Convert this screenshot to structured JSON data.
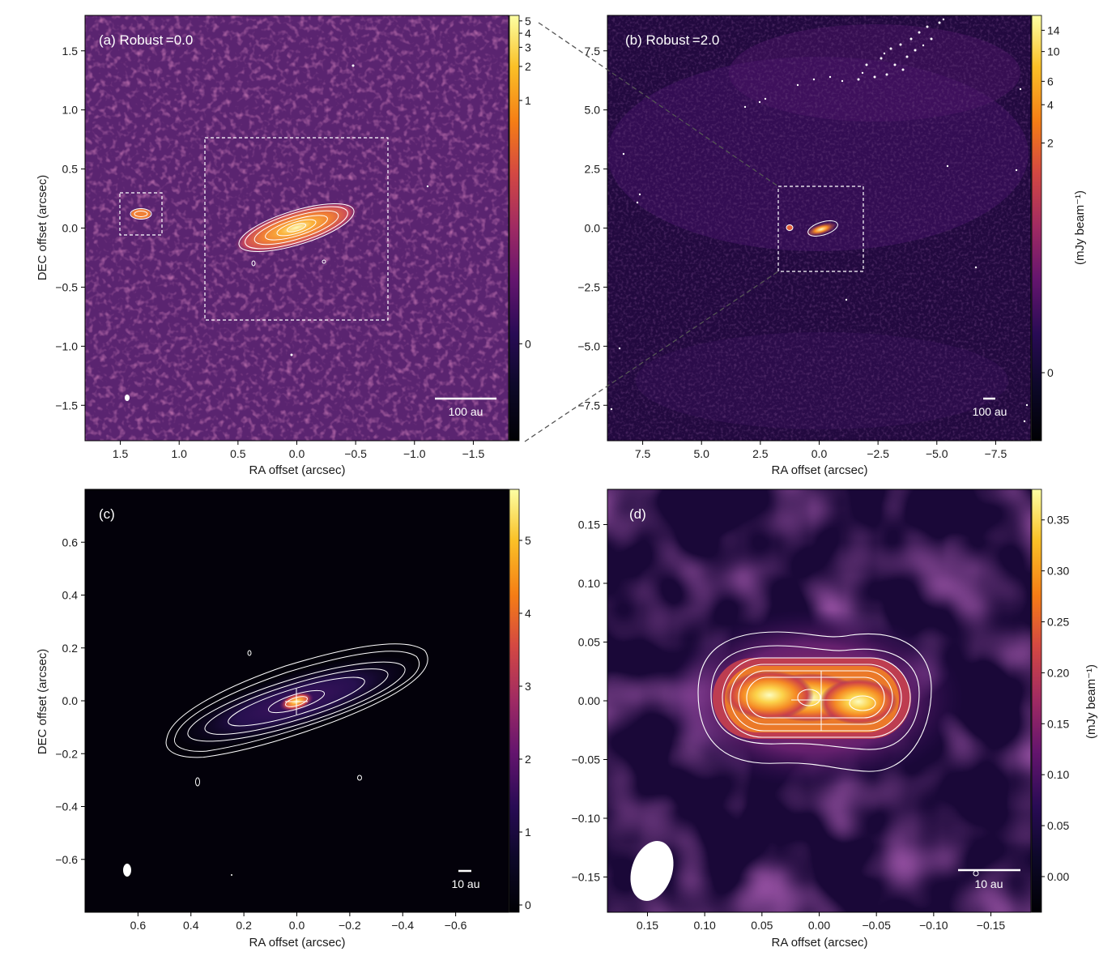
{
  "chart_data": [
    {
      "type": "heatmap",
      "panel_label": "(a) Robust =0.0",
      "xlabel": "RA offset (arcsec)",
      "ylabel": "DEC offset (arcsec)",
      "xlim": [
        1.8,
        -1.8
      ],
      "ylim": [
        -1.8,
        1.8
      ],
      "xticks": [
        {
          "v": 1.5,
          "t": "1.5"
        },
        {
          "v": 1.0,
          "t": "1.0"
        },
        {
          "v": 0.5,
          "t": "0.5"
        },
        {
          "v": 0.0,
          "t": "0.0"
        },
        {
          "v": -0.5,
          "t": "−0.5"
        },
        {
          "v": -1.0,
          "t": "−1.0"
        },
        {
          "v": -1.5,
          "t": "−1.5"
        }
      ],
      "yticks": [
        {
          "v": 1.5,
          "t": "1.5"
        },
        {
          "v": 1.0,
          "t": "1.0"
        },
        {
          "v": 0.5,
          "t": "0.5"
        },
        {
          "v": 0.0,
          "t": "0.0"
        },
        {
          "v": -0.5,
          "t": "−0.5"
        },
        {
          "v": -1.0,
          "t": "−1.0"
        },
        {
          "v": -1.5,
          "t": "−1.5"
        }
      ],
      "colorbar": {
        "scale": "asinh",
        "label": "",
        "ticks": [
          {
            "f": 0.987,
            "t": "5"
          },
          {
            "f": 0.958,
            "t": "4"
          },
          {
            "f": 0.925,
            "t": "3"
          },
          {
            "f": 0.88,
            "t": "2"
          },
          {
            "f": 0.8,
            "t": "1"
          },
          {
            "f": 0.228,
            "t": "0"
          }
        ]
      },
      "scalebar": "100 au",
      "insets": [
        {
          "x0": 0.78,
          "x1": -0.78,
          "y0": -0.78,
          "y1": 0.78
        },
        {
          "x0": 1.5,
          "x1": 1.14,
          "y0": -0.06,
          "y1": 0.3
        }
      ],
      "sources": [
        {
          "name": "primary disk",
          "x": 0.0,
          "y": 0.0,
          "major_arcsec": 1.0,
          "minor_arcsec": 0.24,
          "pa_deg": 70
        },
        {
          "name": "secondary",
          "x": 1.32,
          "y": 0.12
        }
      ]
    },
    {
      "type": "heatmap",
      "panel_label": "(b) Robust =2.0",
      "xlabel": "RA offset (arcsec)",
      "ylabel": "",
      "xlim": [
        9.0,
        -9.0
      ],
      "ylim": [
        -9.0,
        9.0
      ],
      "xticks": [
        {
          "v": 7.5,
          "t": "7.5"
        },
        {
          "v": 5.0,
          "t": "5.0"
        },
        {
          "v": 2.5,
          "t": "2.5"
        },
        {
          "v": 0.0,
          "t": "0.0"
        },
        {
          "v": -2.5,
          "t": "−2.5"
        },
        {
          "v": -5.0,
          "t": "−5.0"
        },
        {
          "v": -7.5,
          "t": "−7.5"
        }
      ],
      "yticks": [
        {
          "v": 7.5,
          "t": "7.5"
        },
        {
          "v": 5.0,
          "t": "5.0"
        },
        {
          "v": 2.5,
          "t": "2.5"
        },
        {
          "v": 0.0,
          "t": "0.0"
        },
        {
          "v": -2.5,
          "t": "−2.5"
        },
        {
          "v": -5.0,
          "t": "−5.0"
        },
        {
          "v": -7.5,
          "t": "−7.5"
        }
      ],
      "colorbar": {
        "scale": "asinh",
        "label": "(mJy beam⁻¹)",
        "ticks": [
          {
            "f": 0.965,
            "t": "14"
          },
          {
            "f": 0.915,
            "t": "10"
          },
          {
            "f": 0.845,
            "t": "6"
          },
          {
            "f": 0.79,
            "t": "4"
          },
          {
            "f": 0.7,
            "t": "2"
          },
          {
            "f": 0.16,
            "t": "0"
          }
        ]
      },
      "scalebar": "100 au",
      "insets": [
        {
          "x0": 1.8,
          "x1": -1.8,
          "y0": -1.8,
          "y1": 1.8
        }
      ],
      "sources": [
        {
          "name": "primary disk",
          "x": 0.0,
          "y": 0.0
        },
        {
          "name": "secondary",
          "x": 1.4,
          "y": 0.1
        }
      ]
    },
    {
      "type": "heatmap",
      "panel_label": "(c)",
      "xlabel": "RA offset (arcsec)",
      "ylabel": "DEC offset (arcsec)",
      "xlim": [
        0.8,
        -0.8
      ],
      "ylim": [
        -0.8,
        0.8
      ],
      "xticks": [
        {
          "v": 0.6,
          "t": "0.6"
        },
        {
          "v": 0.4,
          "t": "0.4"
        },
        {
          "v": 0.2,
          "t": "0.2"
        },
        {
          "v": 0.0,
          "t": "0.0"
        },
        {
          "v": -0.2,
          "t": "−0.2"
        },
        {
          "v": -0.4,
          "t": "−0.4"
        },
        {
          "v": -0.6,
          "t": "−0.6"
        }
      ],
      "yticks": [
        {
          "v": 0.6,
          "t": "0.6"
        },
        {
          "v": 0.4,
          "t": "0.4"
        },
        {
          "v": 0.2,
          "t": "0.2"
        },
        {
          "v": 0.0,
          "t": "0.0"
        },
        {
          "v": -0.2,
          "t": "−0.2"
        },
        {
          "v": -0.4,
          "t": "−0.4"
        },
        {
          "v": -0.6,
          "t": "−0.6"
        }
      ],
      "colorbar": {
        "scale": "linear",
        "label": "",
        "vmin": -0.1,
        "vmax": 5.7,
        "ticks": [
          {
            "v": 0,
            "t": "0"
          },
          {
            "v": 1,
            "t": "1"
          },
          {
            "v": 2,
            "t": "2"
          },
          {
            "v": 3,
            "t": "3"
          },
          {
            "v": 4,
            "t": "4"
          },
          {
            "v": 5,
            "t": "5"
          }
        ]
      },
      "scalebar": "10 au",
      "sources": [
        {
          "name": "primary disk",
          "x": 0.0,
          "y": 0.0,
          "major_arcsec": 0.84,
          "minor_arcsec": 0.2,
          "pa_deg": 70
        }
      ]
    },
    {
      "type": "heatmap",
      "panel_label": "(d)",
      "xlabel": "RA offset (arcsec)",
      "ylabel": "",
      "xlim": [
        0.185,
        -0.185
      ],
      "ylim": [
        -0.18,
        0.18
      ],
      "xticks": [
        {
          "v": 0.15,
          "t": "0.15"
        },
        {
          "v": 0.1,
          "t": "0.10"
        },
        {
          "v": 0.05,
          "t": "0.05"
        },
        {
          "v": 0.0,
          "t": "0.00"
        },
        {
          "v": -0.05,
          "t": "−0.05"
        },
        {
          "v": -0.1,
          "t": "−0.10"
        },
        {
          "v": -0.15,
          "t": "−0.15"
        }
      ],
      "yticks": [
        {
          "v": 0.15,
          "t": "0.15"
        },
        {
          "v": 0.1,
          "t": "0.10"
        },
        {
          "v": 0.05,
          "t": "0.05"
        },
        {
          "v": 0.0,
          "t": "0.00"
        },
        {
          "v": -0.05,
          "t": "−0.05"
        },
        {
          "v": -0.1,
          "t": "−0.10"
        },
        {
          "v": -0.15,
          "t": "−0.15"
        }
      ],
      "colorbar": {
        "scale": "linear",
        "label": "(mJy beam⁻¹)",
        "vmin": -0.035,
        "vmax": 0.38,
        "ticks": [
          {
            "v": 0.0,
            "t": "0.00"
          },
          {
            "v": 0.05,
            "t": "0.05"
          },
          {
            "v": 0.1,
            "t": "0.10"
          },
          {
            "v": 0.15,
            "t": "0.15"
          },
          {
            "v": 0.2,
            "t": "0.20"
          },
          {
            "v": 0.25,
            "t": "0.25"
          },
          {
            "v": 0.3,
            "t": "0.30"
          },
          {
            "v": 0.35,
            "t": "0.35"
          }
        ]
      },
      "scalebar": "10 au",
      "sources": [
        {
          "name": "component",
          "x": 0.01,
          "y": 0.002
        },
        {
          "name": "component",
          "x": -0.038,
          "y": -0.003
        }
      ]
    }
  ]
}
